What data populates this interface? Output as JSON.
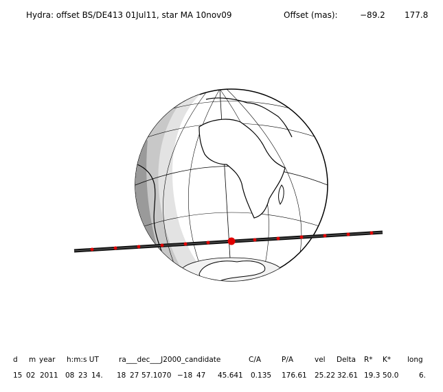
{
  "header": {
    "title": "Hydra: offset BS/DE413 01Jul11, star MA 10nov09",
    "offset_label": "Offset (mas):",
    "offset_values": [
      "−89.2",
      "177.8"
    ]
  },
  "table": {
    "columns": [
      "d",
      "m",
      "year",
      "h:m:s UT",
      "ra___dec___J2000_candidate",
      "C/A",
      "P/A",
      "vel",
      "Delta",
      "R*",
      "K*",
      "long"
    ],
    "row": [
      "15",
      "02",
      "2011",
      "08",
      "23",
      "14.",
      "18",
      "27",
      "57.1070",
      "−18",
      "47",
      "45.641",
      "0.135",
      "176.61",
      "25.22",
      "32.61",
      "19.3",
      "50.0",
      "6."
    ]
  }
}
